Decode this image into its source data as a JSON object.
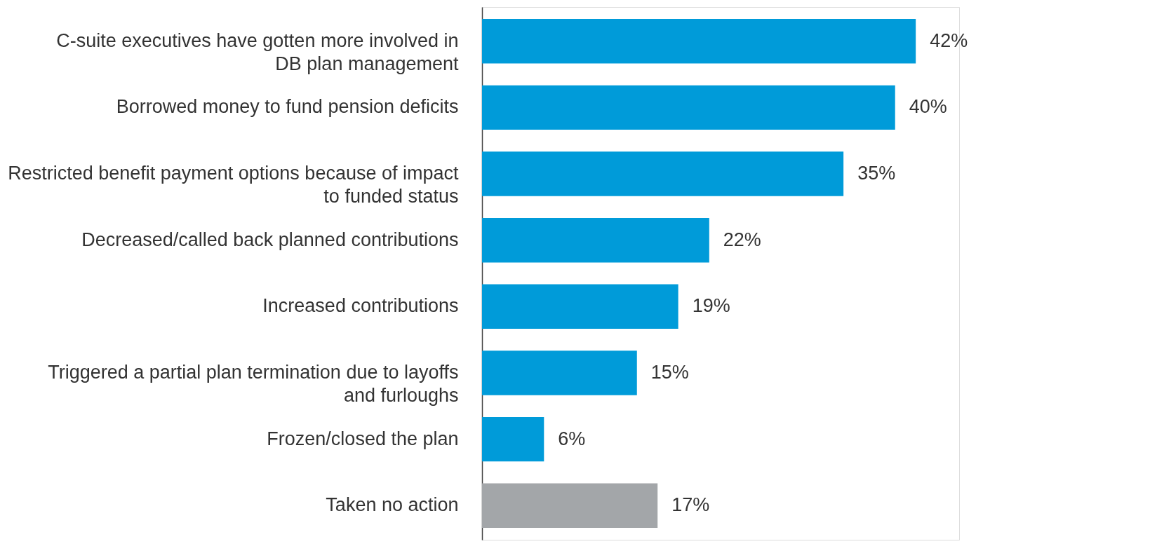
{
  "chart_data": {
    "type": "bar",
    "orientation": "horizontal",
    "categories": [
      "C-suite executives have gotten more involved in\nDB plan management",
      "Borrowed money to fund pension deficits",
      "Restricted benefit payment options because of impact\nto funded status",
      "Decreased/called back planned contributions",
      "Increased contributions",
      "Triggered a partial plan termination due to layoffs\nand furloughs",
      "Frozen/closed the plan",
      "Taken no action"
    ],
    "values": [
      42,
      40,
      35,
      22,
      19,
      15,
      6,
      17
    ],
    "value_labels": [
      "42%",
      "40%",
      "35%",
      "22%",
      "19%",
      "15%",
      "6%",
      "17%"
    ],
    "colors": [
      "#009bd9",
      "#009bd9",
      "#009bd9",
      "#009bd9",
      "#009bd9",
      "#009bd9",
      "#009bd9",
      "#a3a6a9"
    ],
    "grid": false
  }
}
